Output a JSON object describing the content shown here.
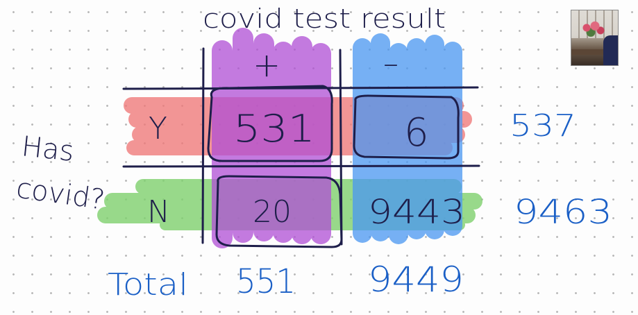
{
  "board": {
    "title": "covid test result",
    "col_headers": [
      "+",
      "–"
    ],
    "row_label_line1": "Has",
    "row_label_line2": "covid?",
    "rows": [
      {
        "label": "Y",
        "values": [
          "531",
          "6"
        ],
        "total": "537"
      },
      {
        "label": "N",
        "values": [
          "20",
          "9443"
        ],
        "total": "9463"
      }
    ],
    "total_label": "Total",
    "col_totals": [
      "551",
      "9449"
    ]
  },
  "colors": {
    "purple_highlight": "#b04fd6",
    "blue_highlight": "#4a97f2",
    "red_highlight": "#f07878",
    "green_highlight": "#7fd16e",
    "ink": "#1e1e4a",
    "blue_ink": "#1a5fc6"
  },
  "webcam": {
    "icon": "webcam-video-thumbnail"
  }
}
